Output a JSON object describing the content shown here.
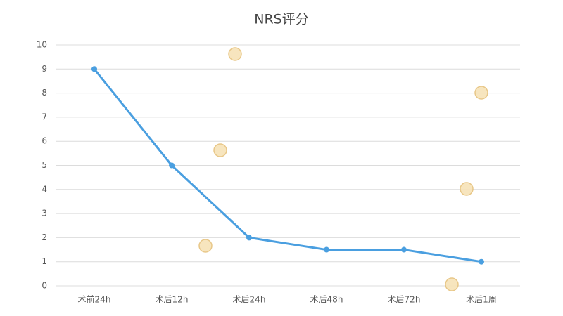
{
  "chart_data": {
    "type": "line",
    "title": "NRS评分",
    "categories": [
      "术前24h",
      "术后12h",
      "术后24h",
      "术后48h",
      "术后72h",
      "术后1周"
    ],
    "values": [
      9,
      5,
      2,
      1.5,
      1.5,
      1
    ],
    "color": "#4a9fe0",
    "ylim": [
      0,
      10
    ],
    "yticks": [
      0,
      1,
      2,
      3,
      4,
      5,
      6,
      7,
      8,
      9,
      10
    ],
    "grid": true
  }
}
